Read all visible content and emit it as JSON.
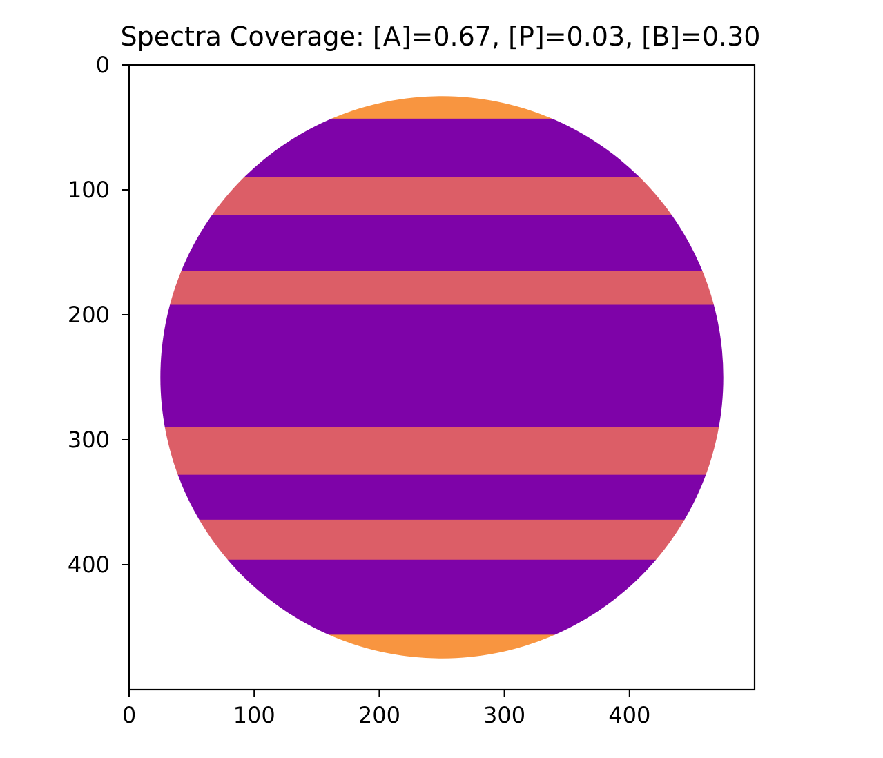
{
  "chart_data": {
    "type": "heatmap",
    "title": "Spectra Coverage: [A]=0.67, [P]=0.03, [B]=0.30",
    "image_shape": [
      500,
      500
    ],
    "xlim": [
      0,
      500
    ],
    "ylim": [
      500,
      0
    ],
    "x_ticks": [
      0,
      100,
      200,
      300,
      400
    ],
    "y_ticks": [
      0,
      100,
      200,
      300,
      400
    ],
    "disk": {
      "center": [
        250,
        250
      ],
      "radius": 225
    },
    "bands": [
      {
        "y0": 22,
        "y1": 43,
        "color": "#f89540"
      },
      {
        "y0": 43,
        "y1": 90,
        "color": "#7e03a8"
      },
      {
        "y0": 90,
        "y1": 120,
        "color": "#dc5e67"
      },
      {
        "y0": 120,
        "y1": 165,
        "color": "#7e03a8"
      },
      {
        "y0": 165,
        "y1": 192,
        "color": "#dc5e67"
      },
      {
        "y0": 192,
        "y1": 290,
        "color": "#7e03a8"
      },
      {
        "y0": 290,
        "y1": 328,
        "color": "#dc5e67"
      },
      {
        "y0": 328,
        "y1": 364,
        "color": "#7e03a8"
      },
      {
        "y0": 364,
        "y1": 396,
        "color": "#dc5e67"
      },
      {
        "y0": 396,
        "y1": 456,
        "color": "#7e03a8"
      },
      {
        "y0": 456,
        "y1": 478,
        "color": "#f89540"
      }
    ],
    "colors": {
      "A": "#7e03a8",
      "P": "#f89540",
      "B": "#dc5e67"
    },
    "grid": false
  }
}
